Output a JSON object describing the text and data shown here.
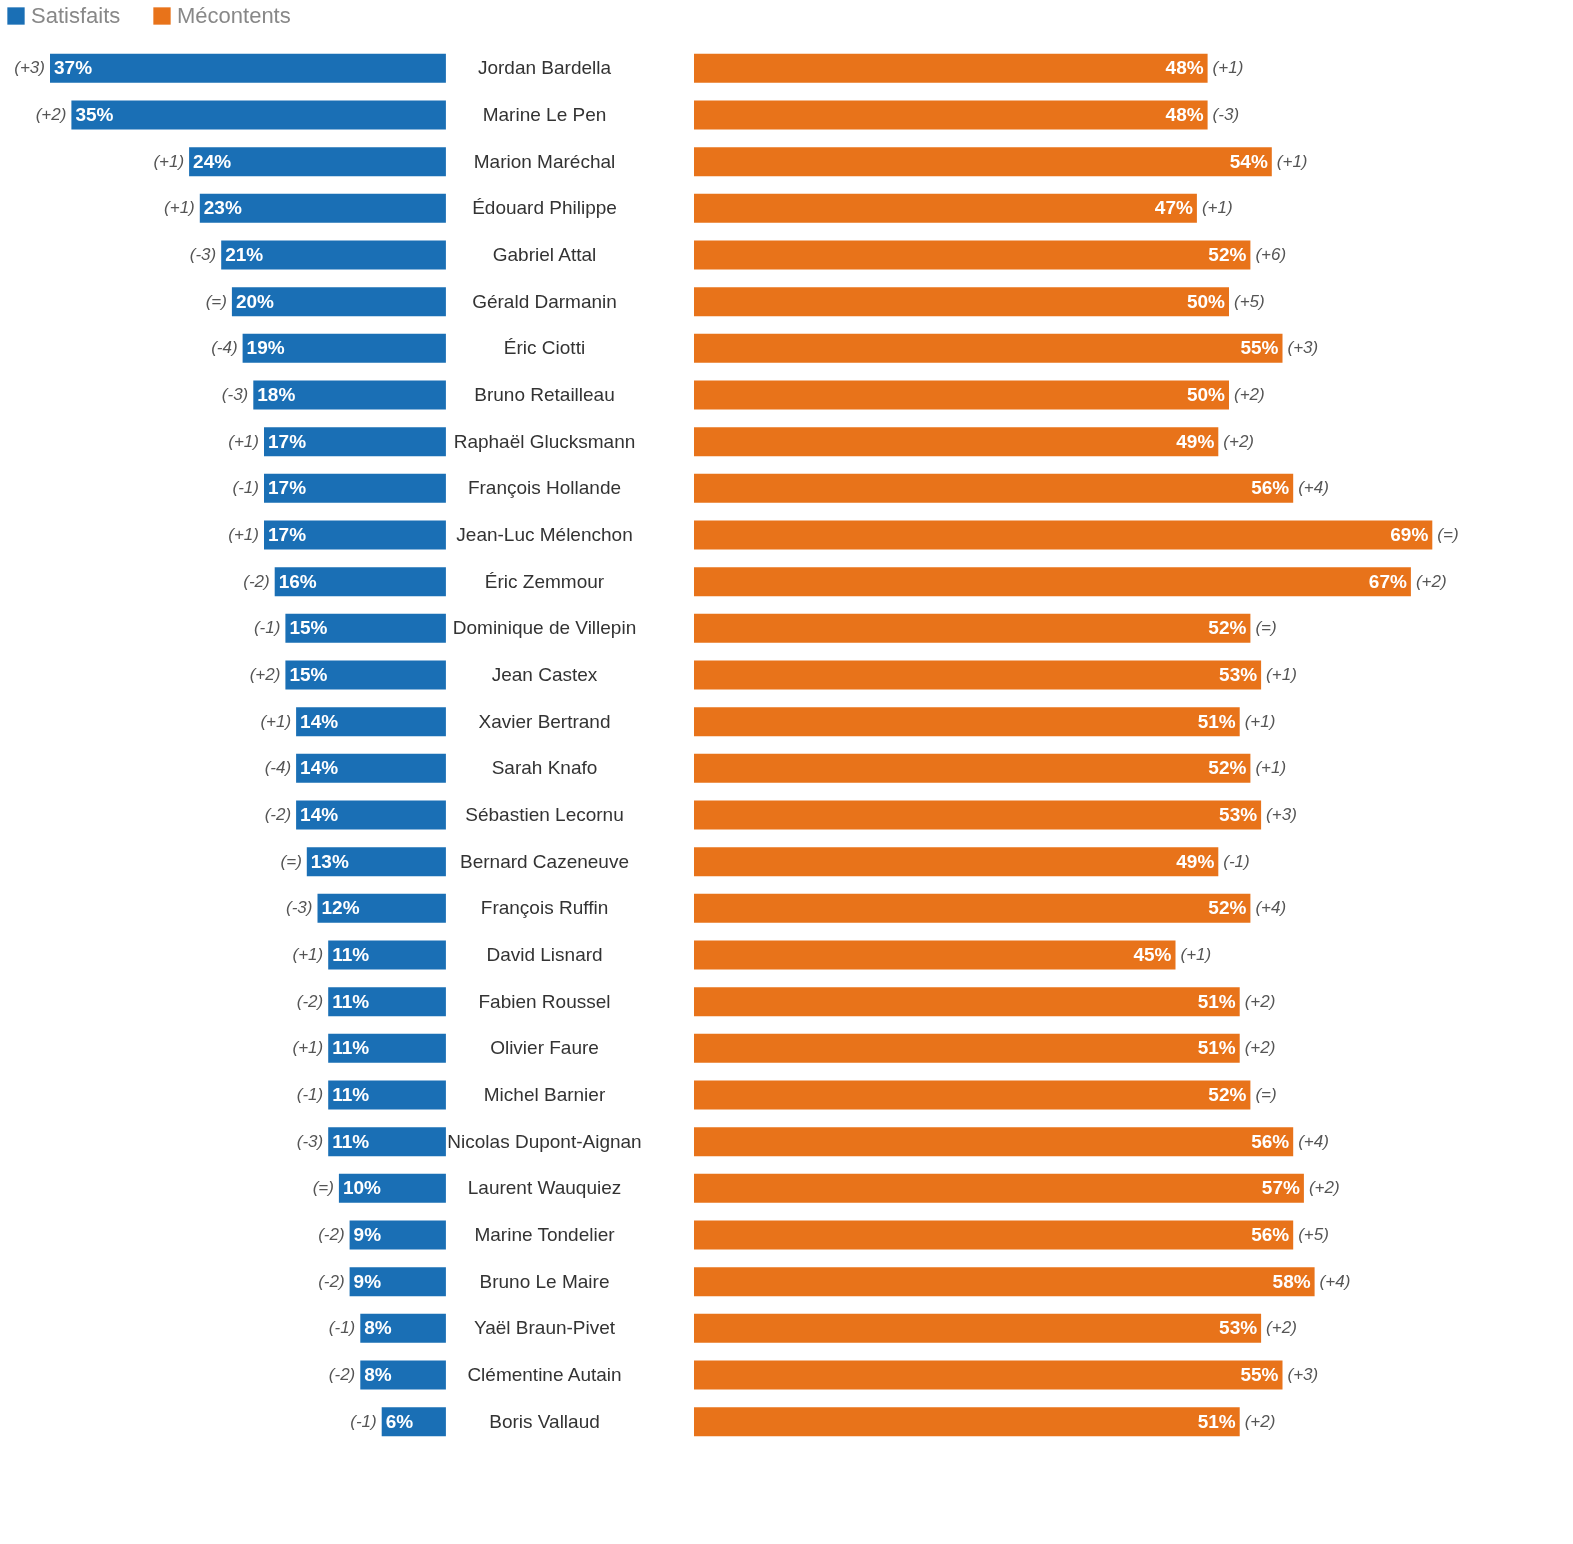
{
  "chart_data": [
    {
      "type": "bar",
      "orientation": "horizontal",
      "legend": "top left",
      "tick_labels": false,
      "categories": [
        "Jordan Bardella",
        "Marine Le Pen",
        "Marion Maréchal",
        "Édouard Philippe",
        "Gabriel Attal",
        "Gérald Darmanin",
        "Éric Ciotti",
        "Bruno Retailleau",
        "Raphaël Glucksmann",
        "François Hollande",
        "Jean-Luc Mélenchon",
        "Éric Zemmour",
        "Dominique de Villepin",
        "Jean Castex",
        "Xavier Bertrand",
        "Sarah Knafo",
        "Sébastien Lecornu",
        "Bernard Cazeneuve",
        "François Ruffin",
        "David Lisnard",
        "Fabien Roussel",
        "Olivier Faure",
        "Michel Barnier",
        "Nicolas Dupont-Aignan",
        "Laurent Wauquiez",
        "Marine Tondelier",
        "Bruno Le Maire",
        "Yaël Braun-Pivet",
        "Clémentine Autain",
        "Boris Vallaud"
      ],
      "series": [
        {
          "name": "Satisfaits",
          "color": "#1a6fb5",
          "values": [
            37,
            35,
            24,
            23,
            21,
            20,
            19,
            18,
            17,
            17,
            17,
            16,
            15,
            15,
            14,
            14,
            14,
            13,
            12,
            11,
            11,
            11,
            11,
            11,
            10,
            9,
            9,
            8,
            8,
            6
          ],
          "value_labels": [
            "37%",
            "35%",
            "24%",
            "23%",
            "21%",
            "20%",
            "19%",
            "18%",
            "17%",
            "17%",
            "17%",
            "16%",
            "15%",
            "15%",
            "14%",
            "14%",
            "14%",
            "13%",
            "12%",
            "11%",
            "11%",
            "11%",
            "11%",
            "11%",
            "10%",
            "9%",
            "9%",
            "8%",
            "8%",
            "6%"
          ]
        }
      ],
      "annotations": [
        {
          "text": "(+3)",
          "x": 37,
          "y": "Jordan Bardella"
        },
        {
          "text": "(+2)",
          "x": 35,
          "y": "Marine Le Pen"
        },
        {
          "text": "(+1)",
          "x": 24,
          "y": "Marion Maréchal"
        },
        {
          "text": "(+1)",
          "x": 23,
          "y": "Édouard Philippe"
        },
        {
          "text": "(-3)",
          "x": 21,
          "y": "Gabriel Attal"
        },
        {
          "text": "(=)",
          "x": 20,
          "y": "Gérald Darmanin"
        },
        {
          "text": "(-4)",
          "x": 19,
          "y": "Éric Ciotti"
        },
        {
          "text": "(-3)",
          "x": 18,
          "y": "Bruno Retailleau"
        },
        {
          "text": "(+1)",
          "x": 17,
          "y": "Raphaël Glucksmann"
        },
        {
          "text": "(-1)",
          "x": 17,
          "y": "François Hollande"
        },
        {
          "text": "(+1)",
          "x": 17,
          "y": "Jean-Luc Mélenchon"
        },
        {
          "text": "(-2)",
          "x": 16,
          "y": "Éric Zemmour"
        },
        {
          "text": "(-1)",
          "x": 15,
          "y": "Dominique de Villepin"
        },
        {
          "text": "(+2)",
          "x": 15,
          "y": "Jean Castex"
        },
        {
          "text": "(+1)",
          "x": 14,
          "y": "Xavier Bertrand"
        },
        {
          "text": "(-4)",
          "x": 14,
          "y": "Sarah Knafo"
        },
        {
          "text": "(-2)",
          "x": 14,
          "y": "Sébastien Lecornu"
        },
        {
          "text": "(=)",
          "x": 13,
          "y": "Bernard Cazeneuve"
        },
        {
          "text": "(-3)",
          "x": 12,
          "y": "François Ruffin"
        },
        {
          "text": "(+1)",
          "x": 11,
          "y": "David Lisnard"
        },
        {
          "text": "(-2)",
          "x": 11,
          "y": "Fabien Roussel"
        },
        {
          "text": "(+1)",
          "x": 11,
          "y": "Olivier Faure"
        },
        {
          "text": "(-1)",
          "x": 11,
          "y": "Michel Barnier"
        },
        {
          "text": "(-3)",
          "x": 11,
          "y": "Nicolas Dupont-Aignan"
        },
        {
          "text": "(=)",
          "x": 10,
          "y": "Laurent Wauquiez"
        },
        {
          "text": "(-2)",
          "x": 9,
          "y": "Marine Tondelier"
        },
        {
          "text": "(-2)",
          "x": 9,
          "y": "Bruno Le Maire"
        },
        {
          "text": "(-1)",
          "x": 8,
          "y": "Yaël Braun-Pivet"
        },
        {
          "text": "(-2)",
          "x": 8,
          "y": "Clémentine Autain"
        },
        {
          "text": "(-1)",
          "x": 6,
          "y": "Boris Vallaud"
        }
      ]
    },
    {
      "type": "bar",
      "orientation": "horizontal",
      "legend": "top left",
      "tick_labels": "y",
      "categories": [
        "Jordan Bardella",
        "Marine Le Pen",
        "Marion Maréchal",
        "Édouard Philippe",
        "Gabriel Attal",
        "Gérald Darmanin",
        "Éric Ciotti",
        "Bruno Retailleau",
        "Raphaël Glucksmann",
        "François Hollande",
        "Jean-Luc Mélenchon",
        "Éric Zemmour",
        "Dominique de Villepin",
        "Jean Castex",
        "Xavier Bertrand",
        "Sarah Knafo",
        "Sébastien Lecornu",
        "Bernard Cazeneuve",
        "François Ruffin",
        "David Lisnard",
        "Fabien Roussel",
        "Olivier Faure",
        "Michel Barnier",
        "Nicolas Dupont-Aignan",
        "Laurent Wauquiez",
        "Marine Tondelier",
        "Bruno Le Maire",
        "Yaël Braun-Pivet",
        "Clémentine Autain",
        "Boris Vallaud"
      ],
      "series": [
        {
          "name": "Mécontents",
          "color": "#e8731a",
          "values": [
            48,
            48,
            54,
            47,
            52,
            50,
            55,
            50,
            49,
            56,
            69,
            67,
            52,
            53,
            51,
            52,
            53,
            49,
            52,
            45,
            51,
            51,
            52,
            56,
            57,
            56,
            58,
            53,
            55,
            51
          ],
          "value_labels": [
            "48%",
            "48%",
            "54%",
            "47%",
            "52%",
            "50%",
            "55%",
            "50%",
            "49%",
            "56%",
            "69%",
            "67%",
            "52%",
            "53%",
            "51%",
            "52%",
            "53%",
            "49%",
            "52%",
            "45%",
            "51%",
            "51%",
            "52%",
            "56%",
            "57%",
            "56%",
            "58%",
            "53%",
            "55%",
            "51%"
          ]
        }
      ],
      "annotations": [
        {
          "text": "(+1)",
          "x": 48,
          "y": "Jordan Bardella"
        },
        {
          "text": "(-3)",
          "x": 48,
          "y": "Marine Le Pen"
        },
        {
          "text": "(+1)",
          "x": 54,
          "y": "Marion Maréchal"
        },
        {
          "text": "(+1)",
          "x": 47,
          "y": "Édouard Philippe"
        },
        {
          "text": "(+6)",
          "x": 52,
          "y": "Gabriel Attal"
        },
        {
          "text": "(+5)",
          "x": 50,
          "y": "Gérald Darmanin"
        },
        {
          "text": "(+3)",
          "x": 55,
          "y": "Éric Ciotti"
        },
        {
          "text": "(+2)",
          "x": 50,
          "y": "Bruno Retailleau"
        },
        {
          "text": "(+2)",
          "x": 49,
          "y": "Raphaël Glucksmann"
        },
        {
          "text": "(+4)",
          "x": 56,
          "y": "François Hollande"
        },
        {
          "text": "(=)",
          "x": 69,
          "y": "Jean-Luc Mélenchon"
        },
        {
          "text": "(+2)",
          "x": 67,
          "y": "Éric Zemmour"
        },
        {
          "text": "(=)",
          "x": 52,
          "y": "Dominique de Villepin"
        },
        {
          "text": "(+1)",
          "x": 53,
          "y": "Jean Castex"
        },
        {
          "text": "(+1)",
          "x": 51,
          "y": "Xavier Bertrand"
        },
        {
          "text": "(+1)",
          "x": 52,
          "y": "Sarah Knafo"
        },
        {
          "text": "(+3)",
          "x": 53,
          "y": "Sébastien Lecornu"
        },
        {
          "text": "(-1)",
          "x": 49,
          "y": "Bernard Cazeneuve"
        },
        {
          "text": "(+4)",
          "x": 52,
          "y": "François Ruffin"
        },
        {
          "text": "(+1)",
          "x": 45,
          "y": "David Lisnard"
        },
        {
          "text": "(+2)",
          "x": 51,
          "y": "Fabien Roussel"
        },
        {
          "text": "(+2)",
          "x": 51,
          "y": "Olivier Faure"
        },
        {
          "text": "(=)",
          "x": 52,
          "y": "Michel Barnier"
        },
        {
          "text": "(+4)",
          "x": 56,
          "y": "Nicolas Dupont-Aignan"
        },
        {
          "text": "(+2)",
          "x": 57,
          "y": "Laurent Wauquiez"
        },
        {
          "text": "(+5)",
          "x": 56,
          "y": "Marine Tondelier"
        },
        {
          "text": "(+4)",
          "x": 58,
          "y": "Bruno Le Maire"
        },
        {
          "text": "(+2)",
          "x": 53,
          "y": "Yaël Braun-Pivet"
        },
        {
          "text": "(+3)",
          "x": 55,
          "y": "Clémentine Autain"
        },
        {
          "text": "(+2)",
          "x": 51,
          "y": "Boris Vallaud"
        }
      ]
    }
  ]
}
